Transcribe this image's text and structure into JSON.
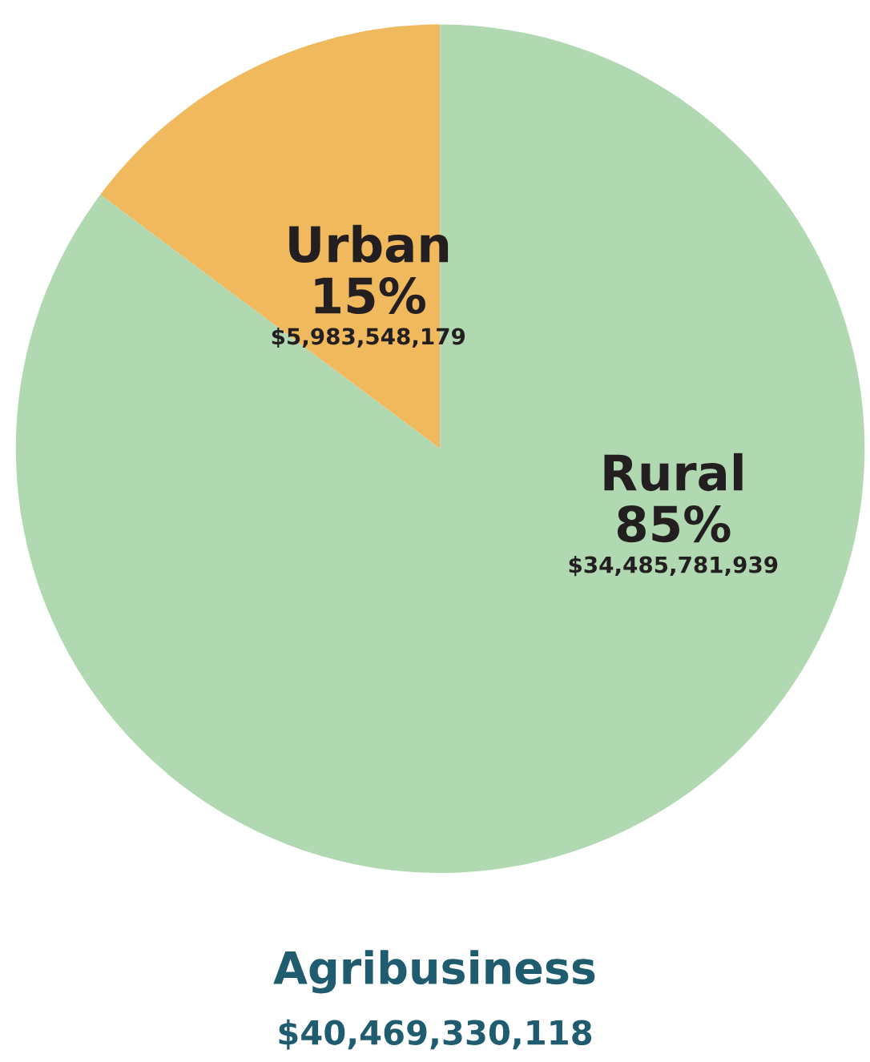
{
  "chart_data": {
    "type": "pie",
    "title": "Agribusiness",
    "subtitle": "$40,469,330,118",
    "categories": [
      "Urban",
      "Rural"
    ],
    "values": [
      5983548179,
      34485781939
    ],
    "value_labels": [
      "15%\n$5,983,548,179",
      "85%\n$34,485,781,939"
    ],
    "colors": [
      "#f0b95e",
      "#b0d9b1"
    ]
  }
}
